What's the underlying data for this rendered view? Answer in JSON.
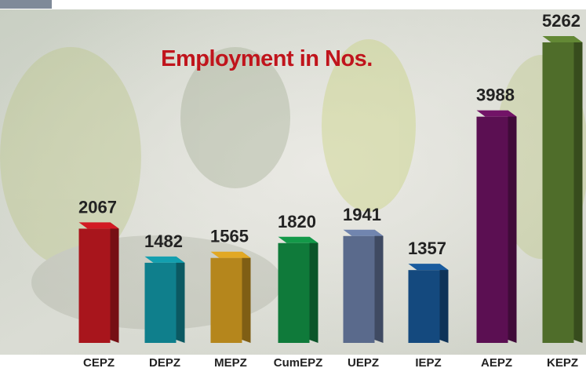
{
  "chart_data": {
    "type": "bar3d",
    "title": "Employment in Nos.",
    "categories": [
      "CEPZ",
      "DEPZ",
      "MEPZ",
      "CumEPZ",
      "UEPZ",
      "IEPZ",
      "AEPZ",
      "KEPZ"
    ],
    "values": [
      2067,
      1482,
      1565,
      1820,
      1941,
      1357,
      3988,
      5262
    ],
    "colors": [
      "#a8151c",
      "#0f7f8c",
      "#b5861c",
      "#0f7a3a",
      "#5a6a8c",
      "#14497e",
      "#5b0f52",
      "#4f6d2a"
    ]
  }
}
